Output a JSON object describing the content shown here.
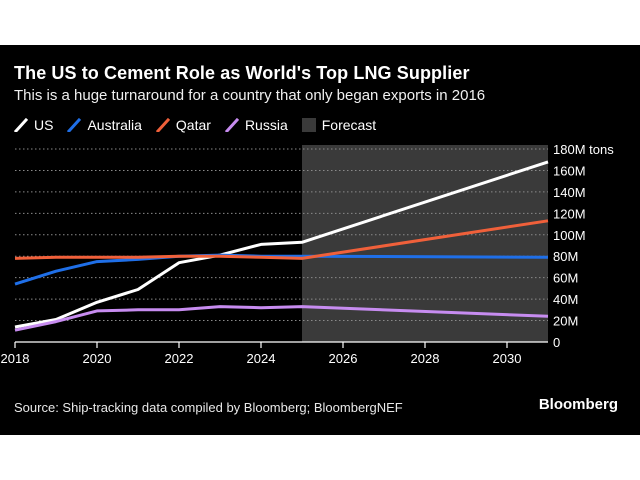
{
  "header": {
    "title": "The US to Cement Role as World's Top LNG Supplier",
    "subtitle": "This is a huge turnaround for a country that only began exports in 2016"
  },
  "legend": [
    {
      "label": "US",
      "color": "#ffffff",
      "kind": "line"
    },
    {
      "label": "Australia",
      "color": "#1f6fe8",
      "kind": "line"
    },
    {
      "label": "Qatar",
      "color": "#f0603a",
      "kind": "line"
    },
    {
      "label": "Russia",
      "color": "#c78cf0",
      "kind": "line"
    },
    {
      "label": "Forecast",
      "color": "#3a3a3a",
      "kind": "area"
    }
  ],
  "footer": {
    "source": "Source: Ship-tracking data compiled by Bloomberg; BloombergNEF",
    "brand": "Bloomberg"
  },
  "chart_data": {
    "type": "line",
    "title": "The US to Cement Role as World's Top LNG Supplier",
    "subtitle": "This is a huge turnaround for a country that only began exports in 2016",
    "ylabel": "180M tons",
    "xlim": [
      2018,
      2031
    ],
    "ylim": [
      0,
      180
    ],
    "x_ticks": [
      "2018",
      "2020",
      "2022",
      "2024",
      "2026",
      "2028",
      "2030"
    ],
    "x_tick_values": [
      2018,
      2020,
      2022,
      2024,
      2026,
      2028,
      2030
    ],
    "y_ticks": [
      "0",
      "20M",
      "40M",
      "60M",
      "80M",
      "100M",
      "120M",
      "140M",
      "160M",
      "180M tons"
    ],
    "y_tick_values": [
      0,
      20,
      40,
      60,
      80,
      100,
      120,
      140,
      160,
      180
    ],
    "grid": "horizontal dotted",
    "forecast_region": [
      2025,
      2031
    ],
    "series": [
      {
        "name": "US",
        "color": "#ffffff",
        "x": [
          2018,
          2019,
          2020,
          2021,
          2022,
          2023,
          2024,
          2025,
          2031
        ],
        "y": [
          14,
          21,
          37,
          49,
          74,
          81,
          91,
          93,
          168
        ]
      },
      {
        "name": "Australia",
        "color": "#1f6fe8",
        "x": [
          2018,
          2019,
          2020,
          2021,
          2022,
          2023,
          2024,
          2025,
          2031
        ],
        "y": [
          54,
          66,
          75,
          77,
          80,
          81,
          80,
          80,
          79
        ]
      },
      {
        "name": "Qatar",
        "color": "#f0603a",
        "x": [
          2018,
          2019,
          2020,
          2021,
          2022,
          2023,
          2024,
          2025,
          2031
        ],
        "y": [
          78,
          79,
          79,
          79,
          80,
          80,
          79,
          78,
          113
        ]
      },
      {
        "name": "Russia",
        "color": "#c78cf0",
        "x": [
          2018,
          2019,
          2020,
          2021,
          2022,
          2023,
          2024,
          2025,
          2031
        ],
        "y": [
          11,
          19,
          29,
          30,
          30,
          33,
          32,
          33,
          24
        ]
      }
    ]
  }
}
